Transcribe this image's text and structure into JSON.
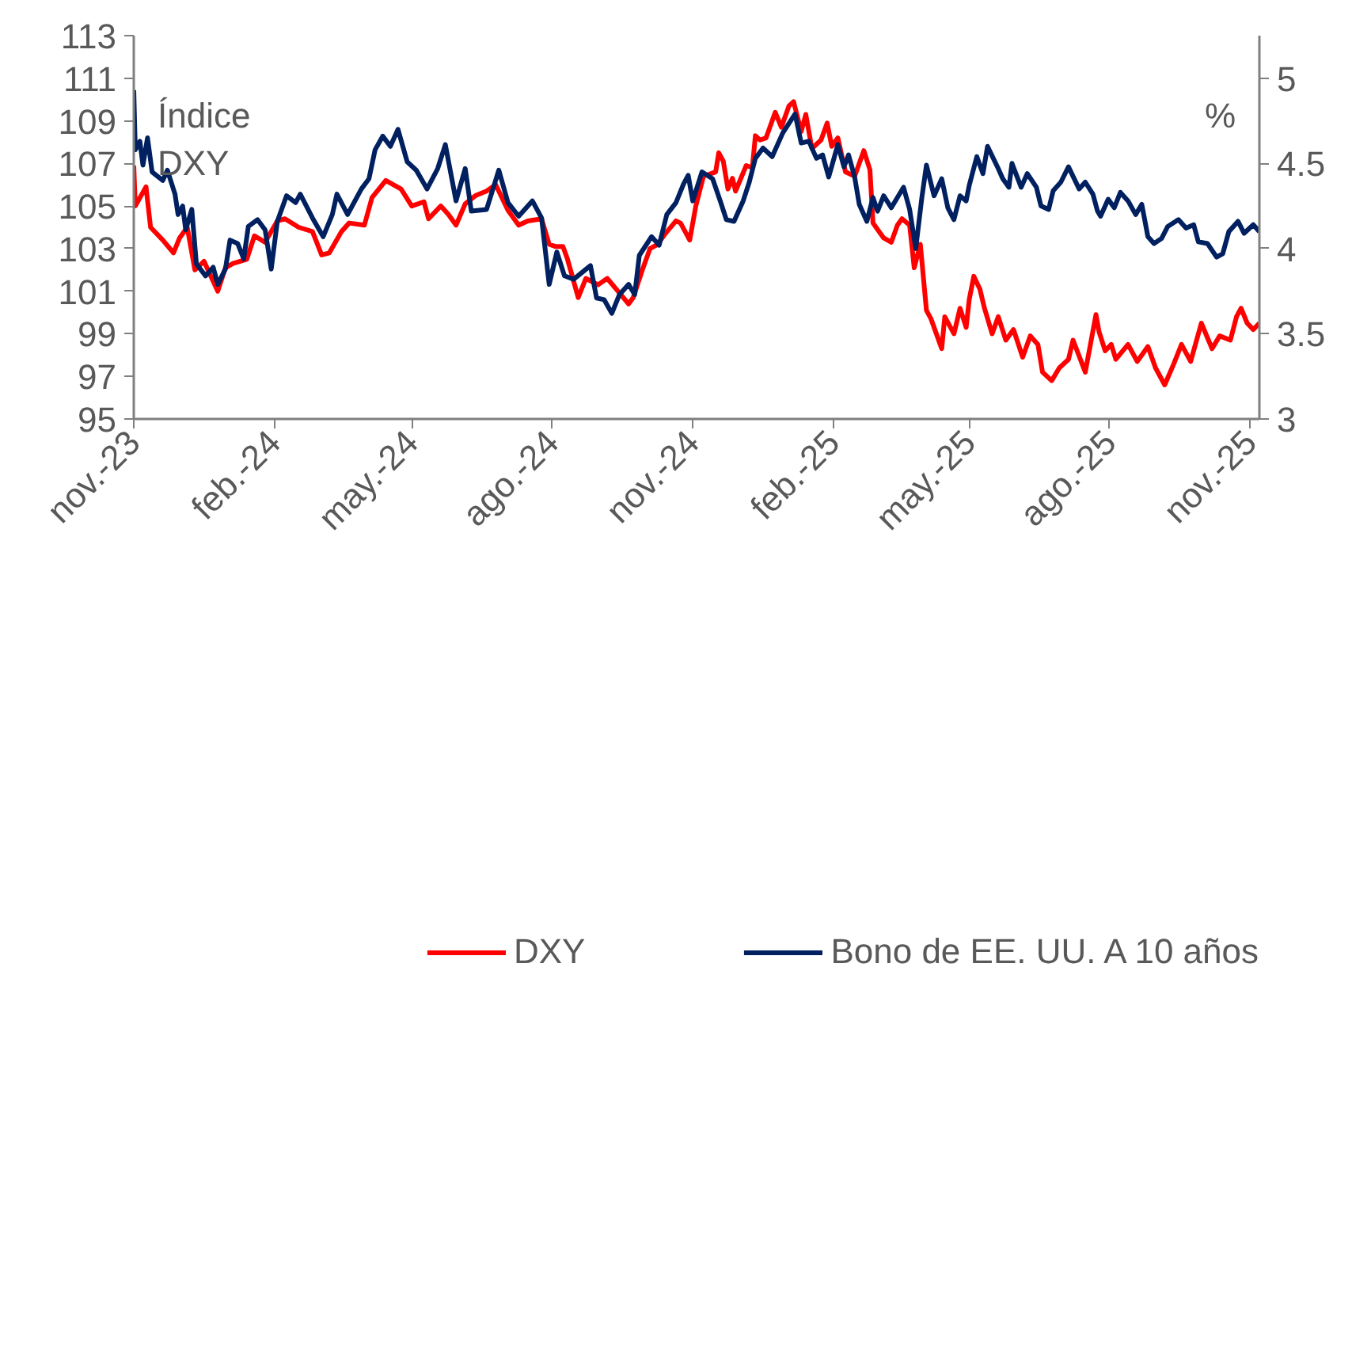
{
  "chart_data": {
    "type": "line",
    "ylabel": "Índice DXY",
    "y2label": "%",
    "xlim": [
      "2023-11-01",
      "2025-11-07"
    ],
    "xticks": [
      {
        "value": "2023-11-01",
        "label": "nov.-23"
      },
      {
        "value": "2024-02-01",
        "label": "feb.-24"
      },
      {
        "value": "2024-05-01",
        "label": "may.-24"
      },
      {
        "value": "2024-08-01",
        "label": "ago.-24"
      },
      {
        "value": "2024-11-01",
        "label": "nov.-24"
      },
      {
        "value": "2025-02-01",
        "label": "feb.-25"
      },
      {
        "value": "2025-05-01",
        "label": "may.-25"
      },
      {
        "value": "2025-08-01",
        "label": "ago.-25"
      },
      {
        "value": "2025-11-01",
        "label": "nov.-25"
      }
    ],
    "ylim": [
      95,
      113
    ],
    "yticks": [
      95,
      97,
      99,
      101,
      103,
      105,
      107,
      109,
      111,
      113
    ],
    "y2lim": [
      3,
      5.25
    ],
    "y2ticks": [
      3,
      3.5,
      4,
      4.5,
      5
    ],
    "grid": false,
    "legend": "bottom",
    "line_style": "solid",
    "marker": "none",
    "series": [
      {
        "name": "DXY",
        "color": "#ff0000",
        "x": [
          "2023-11-01",
          "2023-11-02",
          "2023-11-09",
          "2023-11-12",
          "2023-11-20",
          "2023-11-27",
          "2023-12-01",
          "2023-12-06",
          "2023-12-11",
          "2023-12-17",
          "2023-12-26",
          "2023-12-31",
          "2024-01-05",
          "2024-01-14",
          "2024-01-19",
          "2024-01-26",
          "2024-02-03",
          "2024-02-08",
          "2024-02-17",
          "2024-02-26",
          "2024-03-03",
          "2024-03-08",
          "2024-03-16",
          "2024-03-21",
          "2024-03-31",
          "2024-04-05",
          "2024-04-14",
          "2024-04-24",
          "2024-05-01",
          "2024-05-09",
          "2024-05-12",
          "2024-05-20",
          "2024-05-25",
          "2024-05-30",
          "2024-06-05",
          "2024-06-12",
          "2024-06-19",
          "2024-06-25",
          "2024-07-03",
          "2024-07-10",
          "2024-07-16",
          "2024-07-25",
          "2024-07-30",
          "2024-08-03",
          "2024-08-08",
          "2024-08-11",
          "2024-08-18",
          "2024-08-23",
          "2024-08-31",
          "2024-09-06",
          "2024-09-13",
          "2024-09-20",
          "2024-09-23",
          "2024-09-29",
          "2024-10-04",
          "2024-10-09",
          "2024-10-14",
          "2024-10-21",
          "2024-10-24",
          "2024-10-30",
          "2024-11-03",
          "2024-11-08",
          "2024-11-16",
          "2024-11-18",
          "2024-11-21",
          "2024-11-24",
          "2024-11-27",
          "2024-11-29",
          "2024-12-06",
          "2024-12-10",
          "2024-12-12",
          "2024-12-15",
          "2024-12-19",
          "2024-12-25",
          "2024-12-29",
          "2025-01-03",
          "2025-01-06",
          "2025-01-11",
          "2025-01-14",
          "2025-01-18",
          "2025-01-24",
          "2025-01-28",
          "2025-01-31",
          "2025-02-04",
          "2025-02-09",
          "2025-02-15",
          "2025-02-21",
          "2025-02-25",
          "2025-02-27",
          "2025-03-02",
          "2025-03-06",
          "2025-03-11",
          "2025-03-15",
          "2025-03-18",
          "2025-03-23",
          "2025-03-26",
          "2025-03-30",
          "2025-04-03",
          "2025-04-06",
          "2025-04-13",
          "2025-04-15",
          "2025-04-21",
          "2025-04-25",
          "2025-04-29",
          "2025-05-01",
          "2025-05-04",
          "2025-05-08",
          "2025-05-11",
          "2025-05-16",
          "2025-05-20",
          "2025-05-25",
          "2025-05-30",
          "2025-06-05",
          "2025-06-10",
          "2025-06-15",
          "2025-06-18",
          "2025-06-24",
          "2025-06-29",
          "2025-07-05",
          "2025-07-08",
          "2025-07-16",
          "2025-07-23",
          "2025-07-25",
          "2025-07-29",
          "2025-08-02",
          "2025-08-05",
          "2025-08-13",
          "2025-08-19",
          "2025-08-26",
          "2025-08-31",
          "2025-09-06",
          "2025-09-12",
          "2025-09-17",
          "2025-09-23",
          "2025-09-30",
          "2025-10-07",
          "2025-10-12",
          "2025-10-19",
          "2025-10-23",
          "2025-10-26",
          "2025-10-30",
          "2025-11-03",
          "2025-11-07"
        ],
        "values": [
          106.9,
          105.0,
          105.9,
          104.0,
          103.4,
          102.8,
          103.5,
          104.0,
          102.0,
          102.4,
          101.0,
          102.1,
          102.3,
          102.5,
          103.6,
          103.3,
          104.3,
          104.4,
          104.0,
          103.8,
          102.7,
          102.8,
          103.8,
          104.2,
          104.1,
          105.4,
          106.2,
          105.8,
          105.0,
          105.2,
          104.4,
          105.0,
          104.6,
          104.1,
          105.1,
          105.5,
          105.7,
          106.0,
          104.8,
          104.1,
          104.3,
          104.4,
          103.2,
          103.1,
          103.1,
          102.5,
          100.7,
          101.6,
          101.3,
          101.6,
          101.0,
          100.4,
          100.7,
          102.0,
          103.0,
          103.2,
          103.7,
          104.3,
          104.2,
          103.4,
          105.0,
          106.4,
          106.6,
          107.5,
          107.1,
          105.8,
          106.3,
          105.7,
          106.9,
          106.8,
          108.3,
          108.1,
          108.2,
          109.4,
          108.7,
          109.7,
          109.9,
          108.5,
          109.3,
          107.7,
          108.1,
          108.9,
          107.8,
          108.2,
          106.6,
          106.4,
          107.6,
          106.7,
          104.2,
          103.9,
          103.5,
          103.3,
          104.1,
          104.4,
          104.1,
          102.1,
          103.2,
          100.1,
          99.7,
          98.3,
          99.8,
          99.0,
          100.2,
          99.3,
          100.6,
          101.7,
          101.1,
          100.2,
          99.0,
          99.8,
          98.7,
          99.2,
          97.9,
          98.9,
          98.5,
          97.2,
          96.8,
          97.4,
          97.8,
          98.7,
          97.2,
          99.9,
          99.1,
          98.2,
          98.5,
          97.8,
          98.5,
          97.7,
          98.4,
          97.4,
          96.6,
          97.6,
          98.5,
          97.7,
          99.5,
          98.3,
          98.9,
          98.7,
          99.8,
          100.2,
          99.5,
          99.2,
          99.5
        ]
      },
      {
        "name": "Bono de EE. UU. A 10 años",
        "color": "#002060",
        "axis": "y2",
        "x": [
          "2023-11-01",
          "2023-11-02",
          "2023-11-05",
          "2023-11-07",
          "2023-11-10",
          "2023-11-13",
          "2023-11-20",
          "2023-11-23",
          "2023-11-28",
          "2023-11-30",
          "2023-12-03",
          "2023-12-05",
          "2023-12-09",
          "2023-12-12",
          "2023-12-18",
          "2023-12-23",
          "2023-12-26",
          "2023-12-31",
          "2024-01-03",
          "2024-01-08",
          "2024-01-12",
          "2024-01-15",
          "2024-01-21",
          "2024-01-26",
          "2024-01-30",
          "2024-02-03",
          "2024-02-09",
          "2024-02-15",
          "2024-02-18",
          "2024-02-26",
          "2024-03-04",
          "2024-03-10",
          "2024-03-13",
          "2024-03-20",
          "2024-03-29",
          "2024-04-03",
          "2024-04-07",
          "2024-04-12",
          "2024-04-17",
          "2024-04-22",
          "2024-04-28",
          "2024-05-04",
          "2024-05-11",
          "2024-05-18",
          "2024-05-23",
          "2024-05-30",
          "2024-06-05",
          "2024-06-09",
          "2024-06-19",
          "2024-06-27",
          "2024-07-03",
          "2024-07-10",
          "2024-07-19",
          "2024-07-25",
          "2024-07-30",
          "2024-08-04",
          "2024-08-09",
          "2024-08-15",
          "2024-08-26",
          "2024-08-30",
          "2024-09-04",
          "2024-09-09",
          "2024-09-14",
          "2024-09-20",
          "2024-09-24",
          "2024-09-27",
          "2024-10-05",
          "2024-10-10",
          "2024-10-15",
          "2024-10-21",
          "2024-10-26",
          "2024-10-29",
          "2024-11-01",
          "2024-11-07",
          "2024-11-14",
          "2024-11-19",
          "2024-11-23",
          "2024-11-28",
          "2024-12-04",
          "2024-12-08",
          "2024-12-12",
          "2024-12-17",
          "2024-12-23",
          "2024-12-30",
          "2025-01-07",
          "2025-01-11",
          "2025-01-16",
          "2025-01-21",
          "2025-01-25",
          "2025-01-29",
          "2025-02-04",
          "2025-02-08",
          "2025-02-11",
          "2025-02-15",
          "2025-02-18",
          "2025-02-23",
          "2025-02-27",
          "2025-03-02",
          "2025-03-06",
          "2025-03-11",
          "2025-03-19",
          "2025-03-23",
          "2025-03-27",
          "2025-03-31",
          "2025-04-03",
          "2025-04-08",
          "2025-04-13",
          "2025-04-17",
          "2025-04-21",
          "2025-04-25",
          "2025-04-29",
          "2025-05-01",
          "2025-05-06",
          "2025-05-10",
          "2025-05-13",
          "2025-05-20",
          "2025-05-23",
          "2025-05-27",
          "2025-05-29",
          "2025-06-04",
          "2025-06-08",
          "2025-06-14",
          "2025-06-17",
          "2025-06-22",
          "2025-06-25",
          "2025-06-30",
          "2025-07-05",
          "2025-07-12",
          "2025-07-16",
          "2025-07-21",
          "2025-07-24",
          "2025-07-26",
          "2025-07-31",
          "2025-08-04",
          "2025-08-08",
          "2025-08-13",
          "2025-08-18",
          "2025-08-22",
          "2025-08-26",
          "2025-08-30",
          "2025-09-04",
          "2025-09-08",
          "2025-09-15",
          "2025-09-20",
          "2025-09-25",
          "2025-09-28",
          "2025-10-04",
          "2025-10-10",
          "2025-10-14",
          "2025-10-18",
          "2025-10-24",
          "2025-10-28",
          "2025-11-03",
          "2025-11-07"
        ],
        "values": [
          4.93,
          4.58,
          4.63,
          4.49,
          4.65,
          4.45,
          4.4,
          4.46,
          4.32,
          4.2,
          4.25,
          4.11,
          4.23,
          3.91,
          3.84,
          3.89,
          3.79,
          3.88,
          4.05,
          4.03,
          3.94,
          4.13,
          4.17,
          4.11,
          3.88,
          4.16,
          4.31,
          4.27,
          4.32,
          4.18,
          4.07,
          4.2,
          4.32,
          4.2,
          4.35,
          4.41,
          4.58,
          4.66,
          4.6,
          4.7,
          4.51,
          4.46,
          4.35,
          4.47,
          4.61,
          4.28,
          4.47,
          4.22,
          4.23,
          4.46,
          4.27,
          4.19,
          4.28,
          4.18,
          3.79,
          3.98,
          3.84,
          3.82,
          3.9,
          3.71,
          3.7,
          3.62,
          3.73,
          3.79,
          3.73,
          3.96,
          4.07,
          4.02,
          4.2,
          4.27,
          4.38,
          4.43,
          4.28,
          4.45,
          4.41,
          4.28,
          4.17,
          4.16,
          4.28,
          4.39,
          4.53,
          4.59,
          4.54,
          4.68,
          4.79,
          4.62,
          4.63,
          4.53,
          4.55,
          4.42,
          4.61,
          4.48,
          4.55,
          4.42,
          4.26,
          4.16,
          4.3,
          4.22,
          4.31,
          4.24,
          4.36,
          4.23,
          4.0,
          4.3,
          4.49,
          4.31,
          4.41,
          4.24,
          4.17,
          4.31,
          4.28,
          4.37,
          4.54,
          4.44,
          4.6,
          4.47,
          4.41,
          4.36,
          4.5,
          4.36,
          4.44,
          4.36,
          4.25,
          4.23,
          4.34,
          4.39,
          4.48,
          4.35,
          4.39,
          4.32,
          4.22,
          4.19,
          4.29,
          4.24,
          4.33,
          4.28,
          4.2,
          4.26,
          4.07,
          4.03,
          4.06,
          4.13,
          4.17,
          4.12,
          4.14,
          4.04,
          4.03,
          3.95,
          3.97,
          4.1,
          4.16,
          4.09,
          4.14,
          4.1
        ]
      }
    ]
  }
}
